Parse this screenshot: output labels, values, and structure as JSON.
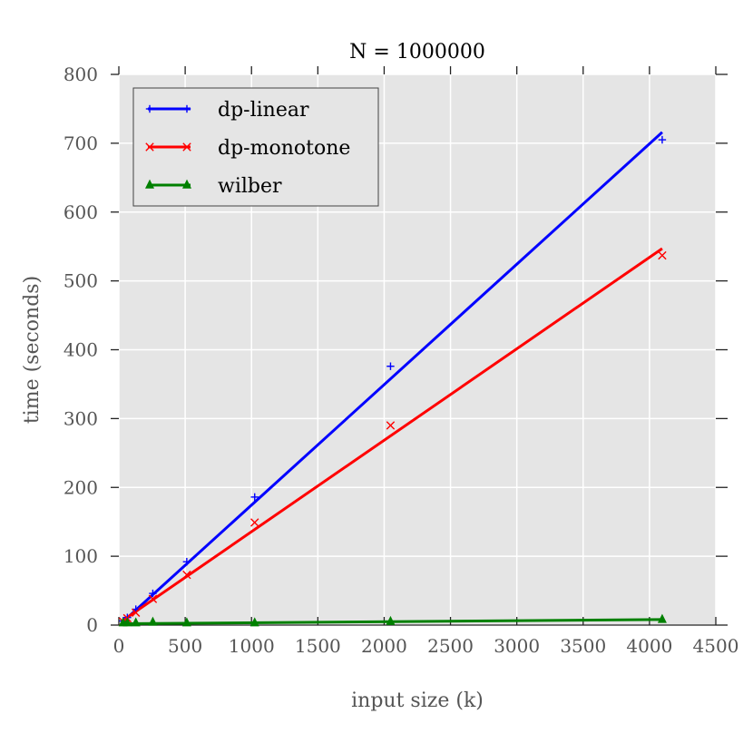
{
  "chart_data": {
    "type": "line",
    "title": "N = 1000000",
    "xlabel": "input size (k)",
    "ylabel": "time (seconds)",
    "xlim": [
      0,
      4500
    ],
    "ylim": [
      0,
      800
    ],
    "xticks": [
      0,
      500,
      1000,
      1500,
      2000,
      2500,
      3000,
      3500,
      4000,
      4500
    ],
    "yticks": [
      0,
      100,
      200,
      300,
      400,
      500,
      600,
      700,
      800
    ],
    "grid": true,
    "legend_position": "top-left",
    "background_color": "#e5e5e5",
    "series": [
      {
        "name": "dp-linear",
        "color": "#0000ff",
        "marker": "plus",
        "points": [
          [
            32,
            6
          ],
          [
            64,
            11
          ],
          [
            128,
            23
          ],
          [
            256,
            46
          ],
          [
            512,
            92
          ],
          [
            1024,
            186
          ],
          [
            2048,
            376
          ],
          [
            4096,
            705
          ]
        ],
        "fit": [
          [
            32,
            5
          ],
          [
            4096,
            716
          ]
        ]
      },
      {
        "name": "dp-monotone",
        "color": "#ff0000",
        "marker": "x",
        "points": [
          [
            32,
            5
          ],
          [
            64,
            10
          ],
          [
            128,
            18
          ],
          [
            256,
            38
          ],
          [
            512,
            73
          ],
          [
            1024,
            149
          ],
          [
            2048,
            290
          ],
          [
            4096,
            537
          ]
        ],
        "fit": [
          [
            32,
            7
          ],
          [
            4096,
            547
          ]
        ]
      },
      {
        "name": "wilber",
        "color": "#008000",
        "marker": "triangle",
        "points": [
          [
            32,
            3
          ],
          [
            64,
            3
          ],
          [
            128,
            3
          ],
          [
            256,
            4
          ],
          [
            512,
            3
          ],
          [
            1024,
            3
          ],
          [
            2048,
            5
          ],
          [
            4096,
            8
          ]
        ],
        "fit": [
          [
            32,
            2
          ],
          [
            4096,
            8
          ]
        ]
      }
    ]
  }
}
